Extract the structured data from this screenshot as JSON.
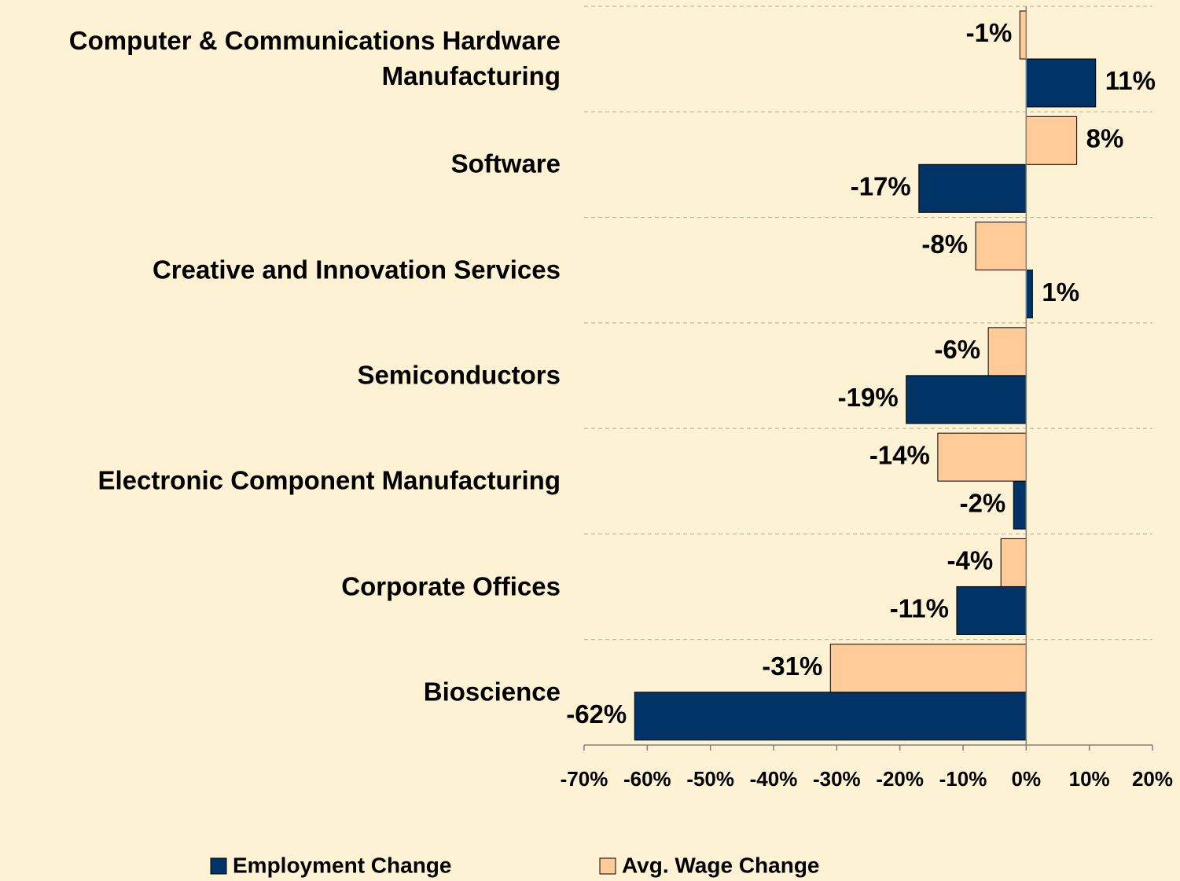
{
  "chart_data": {
    "type": "hbar",
    "categories": [
      "Computer & Communications Hardware Manufacturing",
      "Software",
      "Creative and Innovation Services",
      "Semiconductors",
      "Electronic Component Manufacturing",
      "Corporate Offices",
      "Bioscience"
    ],
    "series": [
      {
        "name": "Employment Change",
        "color": "#003366",
        "values": [
          11,
          -17,
          1,
          -19,
          -2,
          -11,
          -62
        ],
        "value_labels": [
          "11%",
          "-17%",
          "1%",
          "-19%",
          "-2%",
          "-11%",
          "-62%"
        ]
      },
      {
        "name": "Avg. Wage Change",
        "color": "#ffcc99",
        "values": [
          -1,
          8,
          -8,
          -6,
          -14,
          -4,
          -31
        ],
        "value_labels": [
          "-1%",
          "8%",
          "-8%",
          "-6%",
          "-14%",
          "-4%",
          "-31%"
        ]
      }
    ],
    "xlim": [
      -70,
      20
    ],
    "xticks": [
      {
        "value": -70,
        "label": "-70%"
      },
      {
        "value": -60,
        "label": "-60%"
      },
      {
        "value": -50,
        "label": "-50%"
      },
      {
        "value": -40,
        "label": "-40%"
      },
      {
        "value": -30,
        "label": "-30%"
      },
      {
        "value": -20,
        "label": "-20%"
      },
      {
        "value": -10,
        "label": "-10%"
      },
      {
        "value": 0,
        "label": "0%"
      },
      {
        "value": 10,
        "label": "10%"
      },
      {
        "value": 20,
        "label": "20%"
      }
    ],
    "legend": "bottom"
  }
}
